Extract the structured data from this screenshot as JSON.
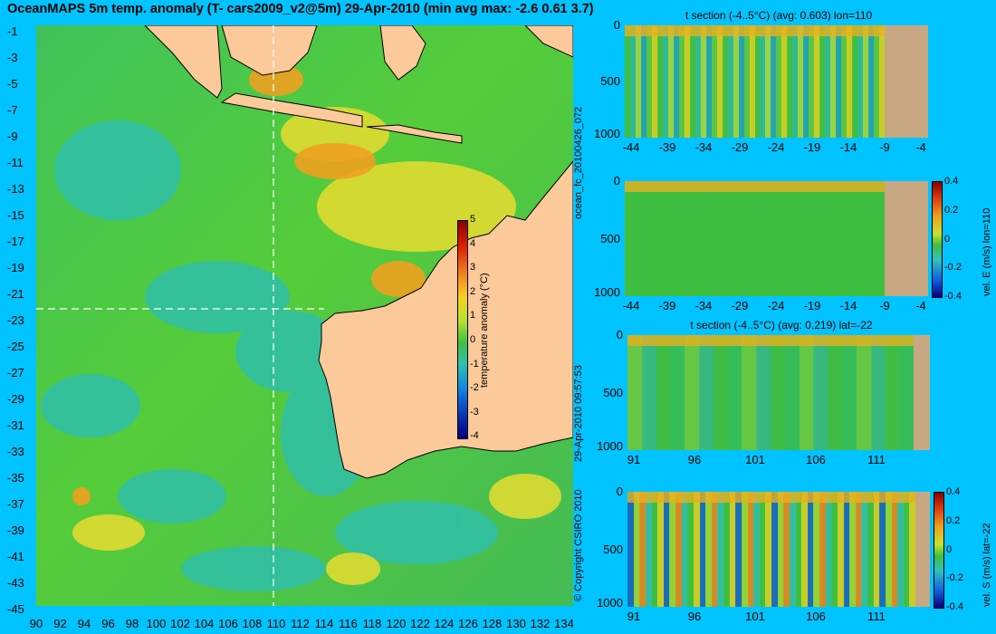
{
  "title": "OceanMAPS 5m temp. anomaly (T- cars2009_v2@5m) 29-Apr-2010 (min avg max: -2.6 0.61 3.7)",
  "map": {
    "lat_ticks": [
      "-1",
      "-3",
      "-5",
      "-7",
      "-9",
      "-11",
      "-13",
      "-15",
      "-17",
      "-19",
      "-21",
      "-23",
      "-25",
      "-27",
      "-29",
      "-31",
      "-33",
      "-35",
      "-37",
      "-39",
      "-41",
      "-43",
      "-45"
    ],
    "lon_ticks": [
      "90",
      "92",
      "94",
      "96",
      "98",
      "100",
      "102",
      "104",
      "106",
      "108",
      "110",
      "112",
      "114",
      "116",
      "118",
      "120",
      "122",
      "124",
      "126",
      "128",
      "130",
      "132",
      "134"
    ],
    "colorbar": {
      "label": "temperature anomaly (°C)",
      "ticks": [
        "5",
        "4",
        "3",
        "2",
        "1",
        "0",
        "-1",
        "-2",
        "-3",
        "-4"
      ]
    },
    "section_lon": "110",
    "section_lat": "-22"
  },
  "side_labels": {
    "run_id": "ocean_fc_20100426_072",
    "timestamp": "29-Apr-2010 09:57:53",
    "copyright": "© Copyright CSIRO 2010"
  },
  "panels": [
    {
      "title": "t section (-4..5°C) (avg: 0.603) lon=110",
      "yticks": [
        "0",
        "500",
        "1000"
      ],
      "xticks": [
        "-44",
        "-39",
        "-34",
        "-29",
        "-24",
        "-19",
        "-14",
        "-9",
        "-4"
      ]
    },
    {
      "title": "",
      "yticks": [
        "0",
        "500",
        "1000"
      ],
      "xticks": [
        "-44",
        "-39",
        "-34",
        "-29",
        "-24",
        "-19",
        "-14",
        "-9",
        "-4"
      ],
      "colorbar_label": "vel. E (m/s) lon=110",
      "colorbar_ticks": [
        "0.4",
        "0.2",
        "0",
        "-0.2",
        "-0.4"
      ]
    },
    {
      "title": "t section (-4..5°C) (avg: 0.219) lat=-22",
      "yticks": [
        "0",
        "500",
        "1000"
      ],
      "xticks": [
        "91",
        "96",
        "101",
        "106",
        "111"
      ]
    },
    {
      "title": "",
      "yticks": [
        "0",
        "500",
        "1000"
      ],
      "xticks": [
        "91",
        "96",
        "101",
        "106",
        "111"
      ],
      "colorbar_label": "vel. S (m/s) lat=-22",
      "colorbar_ticks": [
        "0.4",
        "0.2",
        "0",
        "-0.2",
        "-0.4"
      ]
    }
  ]
}
